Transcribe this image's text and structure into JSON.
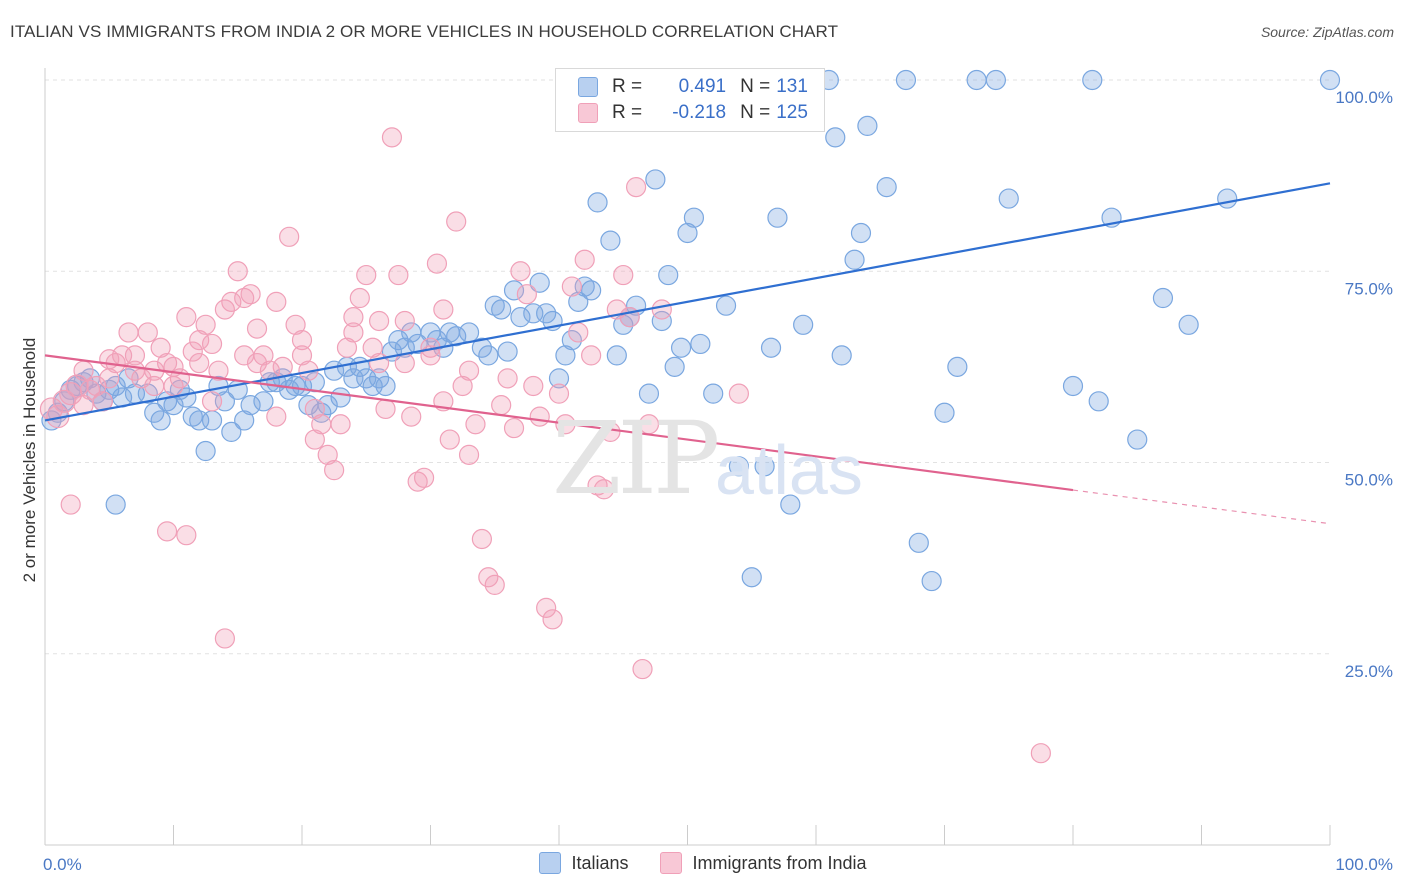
{
  "title": "ITALIAN VS IMMIGRANTS FROM INDIA 2 OR MORE VEHICLES IN HOUSEHOLD CORRELATION CHART",
  "source": "Source: ZipAtlas.com",
  "watermark": {
    "zip": "ZIP",
    "atlas": "atlas"
  },
  "legend": {
    "rows": [
      {
        "r_label": "R =",
        "r_value": "0.491",
        "n_label": "N =",
        "n_value": "131",
        "color": "#7aa7e0"
      },
      {
        "r_label": "R =",
        "r_value": "-0.218",
        "n_label": "N =",
        "n_value": "125",
        "color": "#f0a0b8"
      }
    ]
  },
  "bottom_legend": {
    "italians": "Italians",
    "india": "Immigrants from India"
  },
  "chart_data": {
    "type": "scatter",
    "title": "ITALIAN VS IMMIGRANTS FROM INDIA 2 OR MORE VEHICLES IN HOUSEHOLD CORRELATION CHART",
    "xlabel": "",
    "ylabel": "2 or more Vehicles in Household",
    "xlim": [
      0,
      100
    ],
    "ylim": [
      0,
      100
    ],
    "x_ticks": [
      "0.0%",
      "100.0%"
    ],
    "y_ticks": [
      {
        "value": 25,
        "label": "25.0%"
      },
      {
        "value": 50,
        "label": "50.0%"
      },
      {
        "value": 75,
        "label": "75.0%"
      },
      {
        "value": 100,
        "label": "100.0%"
      }
    ],
    "grid": true,
    "legend_placement": "top-center",
    "series": [
      {
        "name": "Italians",
        "color": "#7aa7e0",
        "line_color": "#2f6fd1",
        "trend": {
          "x0": 0,
          "y0": 55.5,
          "x1": 100,
          "y1": 86.5,
          "dashed_from": null
        },
        "points": [
          [
            0.5,
            55.5
          ],
          [
            1,
            56.5
          ],
          [
            1.5,
            58
          ],
          [
            2,
            59.5
          ],
          [
            2.5,
            60
          ],
          [
            3,
            60.5
          ],
          [
            3.5,
            61
          ],
          [
            4,
            59
          ],
          [
            4.5,
            58
          ],
          [
            5,
            59.5
          ],
          [
            5.5,
            60
          ],
          [
            6,
            58.5
          ],
          [
            6.5,
            61
          ],
          [
            7,
            59
          ],
          [
            8,
            59
          ],
          [
            8.5,
            56.5
          ],
          [
            9,
            55.5
          ],
          [
            9.5,
            58
          ],
          [
            10,
            57.5
          ],
          [
            10.5,
            59.5
          ],
          [
            11,
            58.5
          ],
          [
            11.5,
            56
          ],
          [
            12,
            55.5
          ],
          [
            12.5,
            51.5
          ],
          [
            13,
            55.5
          ],
          [
            13.5,
            60
          ],
          [
            14,
            58
          ],
          [
            14.5,
            54
          ],
          [
            15,
            59.5
          ],
          [
            15.5,
            55.5
          ],
          [
            16,
            57.5
          ],
          [
            17,
            58
          ],
          [
            17.5,
            60.5
          ],
          [
            18,
            60.5
          ],
          [
            18.5,
            61
          ],
          [
            19,
            59.5
          ],
          [
            19.5,
            60
          ],
          [
            20,
            60
          ],
          [
            20.5,
            57.5
          ],
          [
            21,
            60.5
          ],
          [
            21.5,
            56.5
          ],
          [
            22,
            57.5
          ],
          [
            22.5,
            62
          ],
          [
            23,
            58.5
          ],
          [
            23.5,
            62.5
          ],
          [
            24,
            61
          ],
          [
            24.5,
            62.5
          ],
          [
            25,
            61
          ],
          [
            25.5,
            60
          ],
          [
            26,
            61
          ],
          [
            26.5,
            60
          ],
          [
            27,
            64.5
          ],
          [
            27.5,
            66
          ],
          [
            28,
            65
          ],
          [
            28.5,
            67
          ],
          [
            29,
            65.5
          ],
          [
            30,
            67
          ],
          [
            30.5,
            66
          ],
          [
            31,
            65
          ],
          [
            31.5,
            67
          ],
          [
            32,
            66.5
          ],
          [
            33,
            67
          ],
          [
            34,
            65
          ],
          [
            34.5,
            64
          ],
          [
            35,
            70.5
          ],
          [
            35.5,
            70
          ],
          [
            36,
            64.5
          ],
          [
            36.5,
            72.5
          ],
          [
            37,
            69
          ],
          [
            38,
            69.5
          ],
          [
            38.5,
            73.5
          ],
          [
            39,
            69.5
          ],
          [
            39.5,
            68.5
          ],
          [
            40,
            61
          ],
          [
            40.5,
            64
          ],
          [
            41,
            66
          ],
          [
            41.5,
            71
          ],
          [
            42,
            73
          ],
          [
            42.5,
            72.5
          ],
          [
            43,
            84
          ],
          [
            44,
            79
          ],
          [
            44.5,
            64
          ],
          [
            45,
            68
          ],
          [
            45.5,
            69
          ],
          [
            46,
            70.5
          ],
          [
            47,
            59
          ],
          [
            47.5,
            87
          ],
          [
            48,
            68.5
          ],
          [
            48.5,
            74.5
          ],
          [
            49,
            62.5
          ],
          [
            49.5,
            65
          ],
          [
            50,
            80
          ],
          [
            50.5,
            82
          ],
          [
            51,
            65.5
          ],
          [
            52,
            59
          ],
          [
            53,
            70.5
          ],
          [
            54,
            49.5
          ],
          [
            55,
            35
          ],
          [
            56,
            49.5
          ],
          [
            56.5,
            65
          ],
          [
            57,
            82
          ],
          [
            58,
            44.5
          ],
          [
            59,
            68
          ],
          [
            61,
            100
          ],
          [
            61.5,
            92.5
          ],
          [
            62,
            64
          ],
          [
            63,
            76.5
          ],
          [
            63.5,
            80
          ],
          [
            64,
            94
          ],
          [
            65.5,
            86
          ],
          [
            67,
            100
          ],
          [
            68,
            39.5
          ],
          [
            69,
            34.5
          ],
          [
            70,
            56.5
          ],
          [
            71,
            62.5
          ],
          [
            72.5,
            100
          ],
          [
            74,
            100
          ],
          [
            75,
            84.5
          ],
          [
            80,
            60
          ],
          [
            81.5,
            100
          ],
          [
            82,
            58
          ],
          [
            83,
            82
          ],
          [
            85,
            53
          ],
          [
            87,
            71.5
          ],
          [
            89,
            68
          ],
          [
            92,
            84.5
          ],
          [
            100,
            100
          ],
          [
            5.5,
            44.5
          ]
        ]
      },
      {
        "name": "Immigrants from India",
        "color": "#f0a0b8",
        "line_color": "#e0628e",
        "trend": {
          "x0": 0,
          "y0": 64,
          "x1": 100,
          "y1": 42,
          "dashed_from": 80
        },
        "points": [
          [
            0.5,
            57
          ],
          [
            1,
            56
          ],
          [
            1.5,
            58
          ],
          [
            2,
            59
          ],
          [
            2.5,
            60
          ],
          [
            3,
            57.5
          ],
          [
            3.5,
            59.5
          ],
          [
            4,
            60
          ],
          [
            4.5,
            58
          ],
          [
            5,
            61
          ],
          [
            5.5,
            63
          ],
          [
            6,
            64
          ],
          [
            6.5,
            67
          ],
          [
            7,
            64
          ],
          [
            7.5,
            61
          ],
          [
            8,
            67
          ],
          [
            8.5,
            62
          ],
          [
            9,
            65
          ],
          [
            9.5,
            63
          ],
          [
            10,
            60
          ],
          [
            10.5,
            61
          ],
          [
            11,
            69
          ],
          [
            11.5,
            64.5
          ],
          [
            12,
            66
          ],
          [
            12.5,
            68
          ],
          [
            13,
            58
          ],
          [
            13.5,
            62
          ],
          [
            14,
            70
          ],
          [
            14.5,
            71
          ],
          [
            15,
            75
          ],
          [
            15.5,
            71.5
          ],
          [
            16,
            72
          ],
          [
            16.5,
            67.5
          ],
          [
            17,
            64
          ],
          [
            17.5,
            62
          ],
          [
            18,
            71
          ],
          [
            18.5,
            62.5
          ],
          [
            19,
            79.5
          ],
          [
            19.5,
            68
          ],
          [
            20,
            66
          ],
          [
            20.5,
            62
          ],
          [
            21,
            57
          ],
          [
            21.5,
            55
          ],
          [
            22,
            51
          ],
          [
            22.5,
            49
          ],
          [
            23,
            55
          ],
          [
            23.5,
            65
          ],
          [
            24,
            67
          ],
          [
            24.5,
            71.5
          ],
          [
            25,
            74.5
          ],
          [
            25.5,
            65
          ],
          [
            26,
            63
          ],
          [
            26.5,
            57
          ],
          [
            27,
            92.5
          ],
          [
            27.5,
            74.5
          ],
          [
            28,
            68.5
          ],
          [
            28.5,
            56
          ],
          [
            29,
            47.5
          ],
          [
            29.5,
            48
          ],
          [
            30,
            65
          ],
          [
            30.5,
            76
          ],
          [
            31,
            58
          ],
          [
            31.5,
            53
          ],
          [
            32,
            81.5
          ],
          [
            32.5,
            60
          ],
          [
            33,
            51
          ],
          [
            33.5,
            55
          ],
          [
            34,
            40
          ],
          [
            34.5,
            35
          ],
          [
            35,
            34
          ],
          [
            35.5,
            57.5
          ],
          [
            36,
            61
          ],
          [
            36.5,
            54.5
          ],
          [
            37,
            75
          ],
          [
            37.5,
            72
          ],
          [
            38,
            60
          ],
          [
            38.5,
            56
          ],
          [
            39,
            31
          ],
          [
            39.5,
            29.5
          ],
          [
            40,
            59
          ],
          [
            40.5,
            55
          ],
          [
            41,
            73
          ],
          [
            41.5,
            67
          ],
          [
            42,
            76.5
          ],
          [
            42.5,
            64
          ],
          [
            43,
            47
          ],
          [
            43.5,
            46.5
          ],
          [
            44,
            54
          ],
          [
            44.5,
            70
          ],
          [
            45,
            74.5
          ],
          [
            45.5,
            69
          ],
          [
            46,
            86
          ],
          [
            46.5,
            23
          ],
          [
            47,
            55
          ],
          [
            48,
            70
          ],
          [
            2,
            44.5
          ],
          [
            9.5,
            41
          ],
          [
            11,
            40.5
          ],
          [
            14,
            27
          ],
          [
            15.5,
            64
          ],
          [
            16.5,
            63
          ],
          [
            20,
            64
          ],
          [
            12,
            63
          ],
          [
            7,
            62
          ],
          [
            5,
            63.5
          ],
          [
            3,
            62
          ],
          [
            8.5,
            60
          ],
          [
            10,
            62.5
          ],
          [
            13,
            65.5
          ],
          [
            18,
            56
          ],
          [
            21,
            53
          ],
          [
            24,
            69
          ],
          [
            26,
            68.5
          ],
          [
            28,
            63
          ],
          [
            30,
            64
          ],
          [
            33,
            62
          ],
          [
            31,
            70
          ],
          [
            77.5,
            12
          ],
          [
            54,
            59
          ]
        ]
      }
    ]
  }
}
